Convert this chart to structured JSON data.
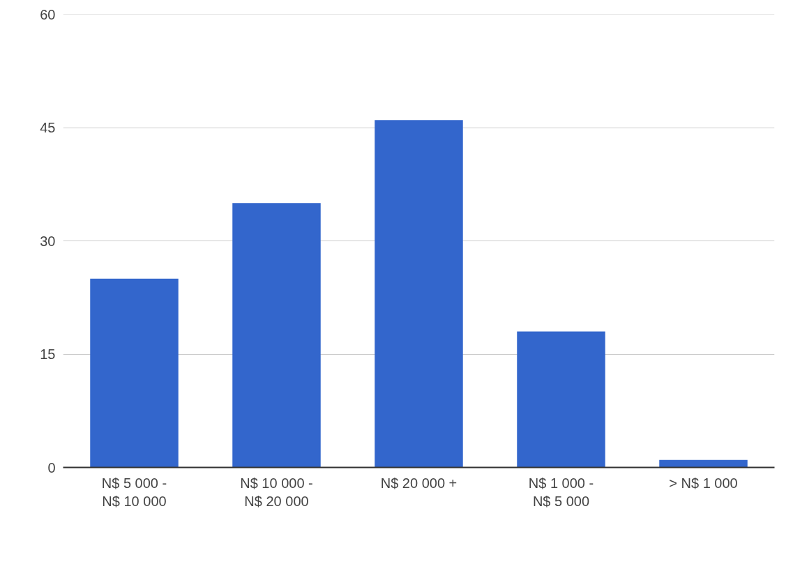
{
  "chart_data": {
    "type": "bar",
    "categories": [
      "N$ 5 000 - N$ 10 000",
      "N$ 10 000 - N$ 20 000",
      "N$ 20 000 +",
      "N$ 1 000 - N$ 5 000",
      "> N$ 1 000"
    ],
    "values": [
      25,
      35,
      46,
      18,
      1
    ],
    "color": "#3366cc",
    "ylim": [
      0,
      60
    ],
    "yticks": [
      0,
      15,
      30,
      45,
      60
    ],
    "grid": "y"
  }
}
